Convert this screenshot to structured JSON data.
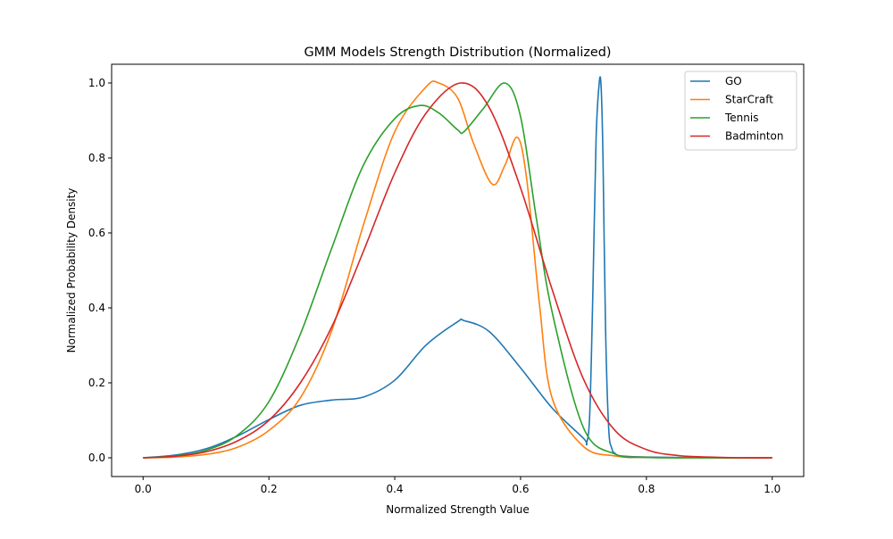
{
  "chart_data": {
    "type": "line",
    "title": "GMM Models Strength Distribution (Normalized)",
    "xlabel": "Normalized Strength Value",
    "ylabel": "Normalized Probability Density",
    "xlim": [
      -0.05,
      1.05
    ],
    "ylim": [
      -0.05,
      1.05
    ],
    "xticks": [
      0.0,
      0.2,
      0.4,
      0.6,
      0.8,
      1.0
    ],
    "xtick_labels": [
      "0.0",
      "0.2",
      "0.4",
      "0.6",
      "0.8",
      "1.0"
    ],
    "yticks": [
      0.0,
      0.2,
      0.4,
      0.6,
      0.8,
      1.0
    ],
    "ytick_labels": [
      "0.0",
      "0.2",
      "0.4",
      "0.6",
      "0.8",
      "1.0"
    ],
    "grid": false,
    "legend_position": "top-right",
    "series": [
      {
        "name": "GO",
        "color": "#1f77b4",
        "x": [
          0.0,
          0.05,
          0.1,
          0.15,
          0.2,
          0.25,
          0.3,
          0.35,
          0.4,
          0.45,
          0.5,
          0.51,
          0.55,
          0.6,
          0.65,
          0.7,
          0.705,
          0.71,
          0.715,
          0.72,
          0.725,
          0.728,
          0.731,
          0.735,
          0.74,
          0.745,
          0.75,
          0.76,
          0.8,
          0.9,
          1.0
        ],
        "y": [
          0.0,
          0.007,
          0.024,
          0.058,
          0.102,
          0.14,
          0.154,
          0.162,
          0.207,
          0.301,
          0.363,
          0.366,
          0.337,
          0.24,
          0.133,
          0.052,
          0.04,
          0.12,
          0.45,
          0.85,
          1.0,
          0.99,
          0.8,
          0.35,
          0.08,
          0.025,
          0.012,
          0.005,
          0.002,
          0.0,
          0.0
        ]
      },
      {
        "name": "StarCraft",
        "color": "#ff7f0e",
        "x": [
          0.0,
          0.05,
          0.1,
          0.15,
          0.2,
          0.25,
          0.3,
          0.35,
          0.4,
          0.45,
          0.47,
          0.5,
          0.525,
          0.555,
          0.575,
          0.595,
          0.61,
          0.63,
          0.65,
          0.7,
          0.75,
          0.8,
          0.9,
          1.0
        ],
        "y": [
          0.0,
          0.002,
          0.009,
          0.028,
          0.073,
          0.16,
          0.34,
          0.62,
          0.87,
          0.99,
          1.0,
          0.96,
          0.84,
          0.73,
          0.78,
          0.855,
          0.74,
          0.41,
          0.16,
          0.03,
          0.005,
          0.001,
          0.0,
          0.0
        ]
      },
      {
        "name": "Tennis",
        "color": "#2ca02c",
        "x": [
          0.0,
          0.05,
          0.1,
          0.15,
          0.2,
          0.25,
          0.3,
          0.35,
          0.4,
          0.44,
          0.47,
          0.5,
          0.51,
          0.54,
          0.575,
          0.6,
          0.625,
          0.65,
          0.7,
          0.75,
          0.8,
          0.9,
          1.0
        ],
        "y": [
          0.0,
          0.005,
          0.02,
          0.06,
          0.15,
          0.33,
          0.56,
          0.78,
          0.905,
          0.94,
          0.92,
          0.875,
          0.87,
          0.93,
          1.0,
          0.91,
          0.64,
          0.39,
          0.08,
          0.01,
          0.001,
          0.0,
          0.0
        ]
      },
      {
        "name": "Badminton",
        "color": "#d62728",
        "x": [
          0.0,
          0.05,
          0.1,
          0.15,
          0.2,
          0.25,
          0.3,
          0.35,
          0.4,
          0.45,
          0.505,
          0.55,
          0.6,
          0.65,
          0.7,
          0.75,
          0.8,
          0.85,
          0.9,
          0.95,
          1.0
        ],
        "y": [
          0.0,
          0.004,
          0.016,
          0.045,
          0.1,
          0.2,
          0.35,
          0.55,
          0.76,
          0.92,
          1.0,
          0.935,
          0.72,
          0.45,
          0.21,
          0.073,
          0.022,
          0.006,
          0.002,
          0.0,
          0.0
        ]
      }
    ]
  }
}
